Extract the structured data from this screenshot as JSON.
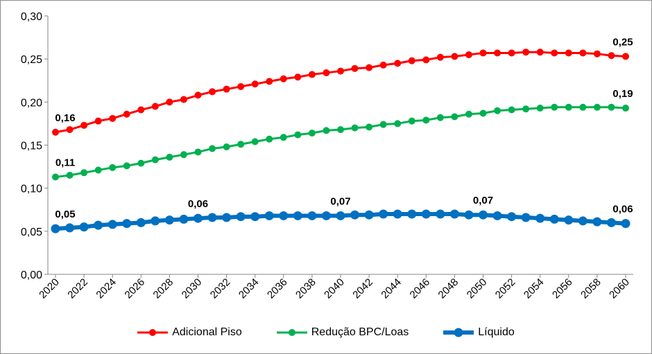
{
  "chart_data": {
    "type": "line",
    "title": "",
    "xlabel": "",
    "ylabel": "",
    "ylim": [
      0,
      0.3
    ],
    "yticks": [
      "0,00",
      "0,05",
      "0,10",
      "0,15",
      "0,20",
      "0,25",
      "0,30"
    ],
    "x": [
      2020,
      2021,
      2022,
      2023,
      2024,
      2025,
      2026,
      2027,
      2028,
      2029,
      2030,
      2031,
      2032,
      2033,
      2034,
      2035,
      2036,
      2037,
      2038,
      2039,
      2040,
      2041,
      2042,
      2043,
      2044,
      2045,
      2046,
      2047,
      2048,
      2049,
      2050,
      2051,
      2052,
      2053,
      2054,
      2055,
      2056,
      2057,
      2058,
      2059,
      2060
    ],
    "xticks": [
      "2020",
      "2022",
      "2024",
      "2026",
      "2028",
      "2030",
      "2032",
      "2034",
      "2036",
      "2038",
      "2040",
      "2042",
      "2044",
      "2046",
      "2048",
      "2050",
      "2052",
      "2054",
      "2056",
      "2058",
      "2060"
    ],
    "legend_position": "bottom",
    "grid": false,
    "series": [
      {
        "name": "Adicional Piso",
        "color": "#ff0000",
        "width": 3,
        "marker": 5,
        "values": [
          0.165,
          0.168,
          0.173,
          0.178,
          0.181,
          0.186,
          0.191,
          0.195,
          0.2,
          0.203,
          0.208,
          0.212,
          0.215,
          0.218,
          0.221,
          0.224,
          0.227,
          0.229,
          0.232,
          0.234,
          0.236,
          0.239,
          0.24,
          0.243,
          0.245,
          0.248,
          0.249,
          0.252,
          0.253,
          0.255,
          0.257,
          0.257,
          0.257,
          0.258,
          0.258,
          0.257,
          0.257,
          0.257,
          0.256,
          0.254,
          0.253
        ],
        "labels": [
          {
            "x": 2020,
            "text": "0,16"
          },
          {
            "x": 2060,
            "text": "0,25"
          }
        ]
      },
      {
        "name": "Redução BPC/Loas",
        "color": "#00b050",
        "width": 3,
        "marker": 5,
        "values": [
          0.113,
          0.115,
          0.118,
          0.121,
          0.124,
          0.126,
          0.129,
          0.133,
          0.136,
          0.139,
          0.142,
          0.146,
          0.148,
          0.151,
          0.154,
          0.157,
          0.159,
          0.162,
          0.164,
          0.167,
          0.168,
          0.17,
          0.171,
          0.174,
          0.175,
          0.178,
          0.179,
          0.182,
          0.183,
          0.186,
          0.187,
          0.19,
          0.191,
          0.192,
          0.193,
          0.194,
          0.194,
          0.194,
          0.194,
          0.194,
          0.193
        ],
        "labels": [
          {
            "x": 2020,
            "text": "0,11"
          },
          {
            "x": 2060,
            "text": "0,19"
          }
        ]
      },
      {
        "name": "Líquido",
        "color": "#0070c0",
        "width": 6,
        "marker": 6.5,
        "values": [
          0.053,
          0.054,
          0.055,
          0.057,
          0.058,
          0.059,
          0.06,
          0.062,
          0.063,
          0.064,
          0.065,
          0.066,
          0.066,
          0.067,
          0.067,
          0.068,
          0.068,
          0.068,
          0.068,
          0.068,
          0.068,
          0.069,
          0.069,
          0.07,
          0.07,
          0.07,
          0.07,
          0.07,
          0.07,
          0.069,
          0.069,
          0.068,
          0.067,
          0.066,
          0.065,
          0.064,
          0.063,
          0.062,
          0.061,
          0.06,
          0.059
        ],
        "labels": [
          {
            "x": 2020,
            "text": "0,05"
          },
          {
            "x": 2030,
            "text": "0,06"
          },
          {
            "x": 2040,
            "text": "0,07"
          },
          {
            "x": 2050,
            "text": "0,07"
          },
          {
            "x": 2060,
            "text": "0,06"
          }
        ]
      }
    ]
  }
}
